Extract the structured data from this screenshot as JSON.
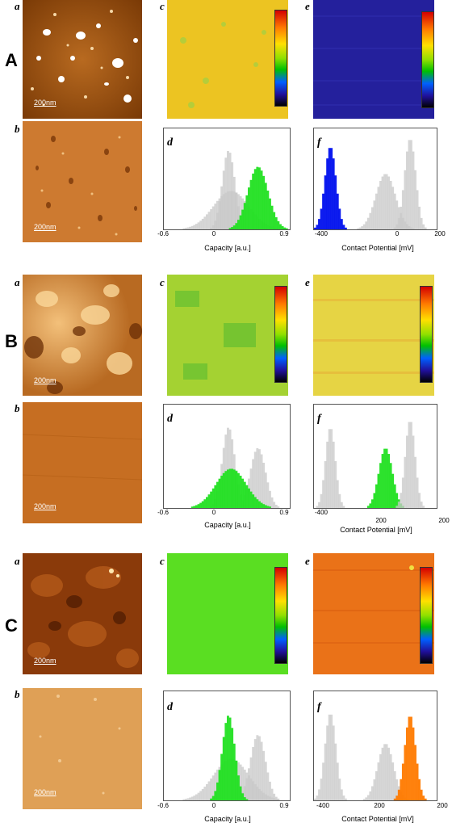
{
  "sections": [
    {
      "label": "A",
      "panels": {
        "a": "a",
        "b": "b",
        "c": "c",
        "d": "d",
        "e": "e",
        "f": "f"
      },
      "scalebar": "200nm",
      "capacity_ticks": [
        "-0.6",
        "0",
        "0.9"
      ],
      "capacity_label": "Capacity [a.u.]",
      "contact_ticks": [
        "-400",
        "0",
        "200"
      ],
      "contact_label": "Contact Potential [mV]"
    },
    {
      "label": "B",
      "panels": {
        "a": "a",
        "b": "b",
        "c": "c",
        "d": "d",
        "e": "e",
        "f": "f"
      },
      "scalebar": "200nm",
      "capacity_ticks": [
        "-0.6",
        "0",
        "0.9"
      ],
      "capacity_label": "Capacity [a.u.]",
      "contact_ticks": [
        "-400",
        "200",
        "200"
      ],
      "contact_label": "Contact Potential [mV]"
    },
    {
      "label": "C",
      "panels": {
        "a": "a",
        "b": "b",
        "c": "c",
        "d": "d",
        "e": "e",
        "f": "f"
      },
      "scalebar": "200nm",
      "capacity_ticks": [
        "-0.6",
        "0",
        "0.9"
      ],
      "capacity_label": "Capacity [a.u.]",
      "contact_ticks": [
        "-400",
        "200",
        "200"
      ],
      "contact_label": "Contact Potential [mV]"
    }
  ],
  "colors": {
    "highlight_green": "#22e022",
    "highlight_blue": "#0010ee",
    "highlight_orange": "#ff7a00",
    "reference_gray": "#c8c8c8"
  },
  "chart_data": [
    {
      "type": "histogram",
      "panel": "A-d",
      "xlabel": "Capacity [a.u.]",
      "xlim": [
        -0.6,
        0.9
      ],
      "series": [
        {
          "color": "gray",
          "peaks": [
            0.17
          ]
        },
        {
          "color": "gray",
          "peaks": [
            0.2
          ]
        },
        {
          "color": "green",
          "peaks": [
            0.52
          ]
        }
      ]
    },
    {
      "type": "histogram",
      "panel": "A-f",
      "xlabel": "Contact Potential [mV]",
      "xlim": [
        -400,
        200
      ],
      "series": [
        {
          "color": "blue",
          "peaks": [
            -320
          ]
        },
        {
          "color": "gray",
          "peaks": [
            -50
          ]
        },
        {
          "color": "gray",
          "peaks": [
            70
          ]
        }
      ]
    },
    {
      "type": "histogram",
      "panel": "B-d",
      "xlabel": "Capacity [a.u.]",
      "xlim": [
        -0.6,
        0.9
      ],
      "series": [
        {
          "color": "gray",
          "peaks": [
            0.17
          ]
        },
        {
          "color": "gray",
          "peaks": [
            0.52
          ]
        },
        {
          "color": "green",
          "peaks": [
            0.2
          ]
        }
      ]
    },
    {
      "type": "histogram",
      "panel": "B-f",
      "xlabel": "Contact Potential [mV]",
      "xlim": [
        -400,
        200
      ],
      "series": [
        {
          "color": "gray",
          "peaks": [
            -320
          ]
        },
        {
          "color": "green",
          "peaks": [
            -50
          ]
        },
        {
          "color": "gray",
          "peaks": [
            70
          ]
        }
      ]
    },
    {
      "type": "histogram",
      "panel": "C-d",
      "xlabel": "Capacity [a.u.]",
      "xlim": [
        -0.6,
        0.9
      ],
      "series": [
        {
          "color": "gray",
          "peaks": [
            0.52
          ]
        },
        {
          "color": "gray",
          "peaks": [
            0.2
          ]
        },
        {
          "color": "green",
          "peaks": [
            0.17
          ]
        }
      ]
    },
    {
      "type": "histogram",
      "panel": "C-f",
      "xlabel": "Contact Potential [mV]",
      "xlim": [
        -400,
        200
      ],
      "series": [
        {
          "color": "gray",
          "peaks": [
            -320
          ]
        },
        {
          "color": "gray",
          "peaks": [
            -50
          ]
        },
        {
          "color": "orange",
          "peaks": [
            70
          ]
        }
      ]
    }
  ]
}
